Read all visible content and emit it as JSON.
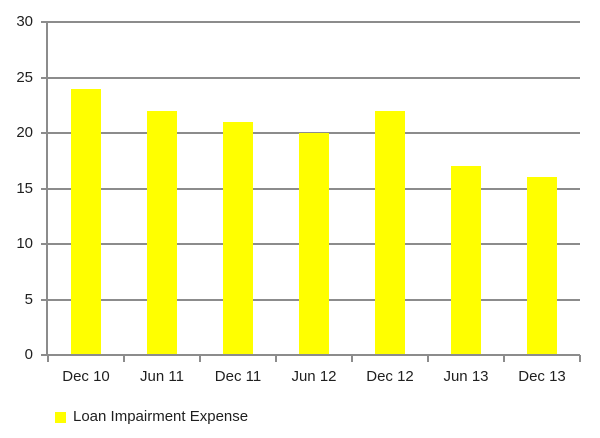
{
  "chart_data": {
    "type": "bar",
    "title": "",
    "xlabel": "",
    "ylabel": "",
    "categories": [
      "Dec 10",
      "Jun 11",
      "Dec 11",
      "Jun 12",
      "Dec 12",
      "Jun 13",
      "Dec 13"
    ],
    "series": [
      {
        "name": "Loan Impairment Expense",
        "values": [
          24,
          22,
          21,
          20,
          22,
          17,
          16
        ],
        "color": "#FFFF00"
      }
    ],
    "ylim": [
      0,
      30
    ],
    "yticks": [
      0,
      5,
      10,
      15,
      20,
      25,
      30
    ],
    "grid": true,
    "legend_position": "bottom-left",
    "colors": {
      "bar": "#FFFF00",
      "gridline": "#8C8C8C",
      "axis": "#8C8C8C",
      "text": "#1F1F1F",
      "background": "#FFFFFF"
    }
  }
}
